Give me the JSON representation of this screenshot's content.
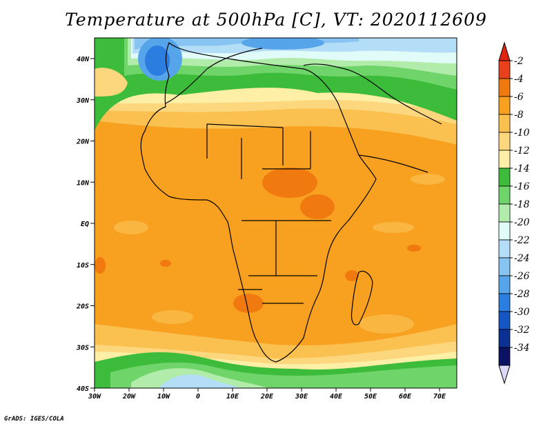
{
  "title": "Temperature at 500hPa [C], VT: 2020112609",
  "credit": "GrADS: IGES/COLA",
  "map": {
    "lat_ticks": [
      "40N",
      "30N",
      "20N",
      "10N",
      "EQ",
      "10S",
      "20S",
      "30S",
      "40S"
    ],
    "lon_ticks": [
      "30W",
      "20W",
      "10W",
      "0",
      "10E",
      "20E",
      "30E",
      "40E",
      "50E",
      "60E",
      "70E"
    ]
  },
  "colorbar": {
    "labels": [
      "-2",
      "-4",
      "-6",
      "-8",
      "-10",
      "-12",
      "-14",
      "-16",
      "-18",
      "-20",
      "-22",
      "-24",
      "-26",
      "-28",
      "-30",
      "-32",
      "-34"
    ],
    "colors": [
      "#e8411c",
      "#f07a10",
      "#f8a020",
      "#fac050",
      "#fdd77e",
      "#fdf0a6",
      "#3dbb3a",
      "#6fd56a",
      "#b2ecaa",
      "#e1fbf8",
      "#b4ddf7",
      "#87c4f2",
      "#56a5ea",
      "#2b7ee0",
      "#1556c4",
      "#0c3094",
      "#0a1264"
    ],
    "top_arrow_color": "#e02414",
    "bottom_arrow_color": "#dcd8f8"
  }
}
